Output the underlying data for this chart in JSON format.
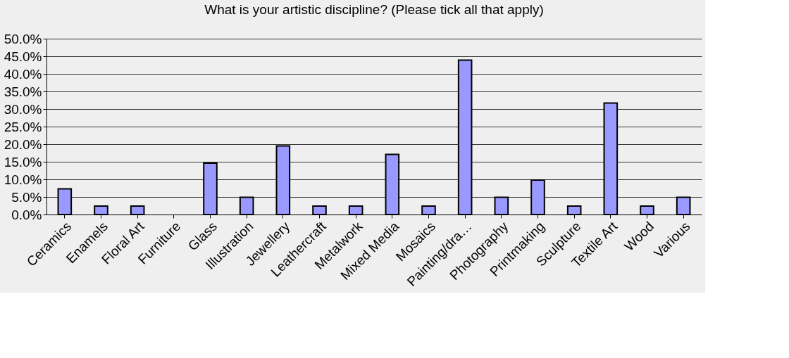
{
  "chart_data": {
    "type": "bar",
    "title": "What is your artistic discipline? (Please tick all that apply)",
    "categories": [
      "Ceramics",
      "Enamels",
      "Floral Art",
      "Furniture",
      "Glass",
      "Illustration",
      "Jewellery",
      "Leathercraft",
      "Metalwork",
      "Mixed Media",
      "Mosaics",
      "Painting/dra…",
      "Photography",
      "Printmaking",
      "Sculpture",
      "Textile Art",
      "Wood",
      "Various"
    ],
    "values": [
      7.3,
      2.4,
      2.4,
      0,
      14.6,
      4.9,
      19.5,
      2.4,
      2.4,
      17.1,
      2.4,
      43.9,
      4.9,
      9.8,
      2.4,
      31.7,
      2.4,
      4.9
    ],
    "color": "#9999ff",
    "ylim": [
      0,
      50
    ],
    "yticks": [
      {
        "value": 0,
        "label": "0.0%"
      },
      {
        "value": 5,
        "label": "5.0%"
      },
      {
        "value": 10,
        "label": "10.0%"
      },
      {
        "value": 15,
        "label": "15.0%"
      },
      {
        "value": 20,
        "label": "20.0%"
      },
      {
        "value": 25,
        "label": "25.0%"
      },
      {
        "value": 30,
        "label": "30.0%"
      },
      {
        "value": 35,
        "label": "35.0%"
      },
      {
        "value": 40,
        "label": "40.0%"
      },
      {
        "value": 45,
        "label": "45.0%"
      },
      {
        "value": 50,
        "label": "50.0%"
      }
    ],
    "grid": "y"
  }
}
